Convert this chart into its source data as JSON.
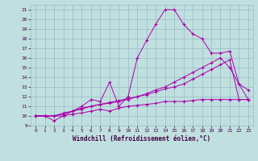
{
  "xlabel": "Windchill (Refroidissement éolien,°C)",
  "background_color": "#c0e0e0",
  "grid_color": "#9ab8c8",
  "line_color": "#aa00aa",
  "xlim": [
    -0.5,
    23.5
  ],
  "ylim": [
    9,
    21.5
  ],
  "xticks": [
    0,
    1,
    2,
    3,
    4,
    5,
    6,
    7,
    8,
    9,
    10,
    11,
    12,
    13,
    14,
    15,
    16,
    17,
    18,
    19,
    20,
    21,
    22,
    23
  ],
  "yticks": [
    9,
    10,
    11,
    12,
    13,
    14,
    15,
    16,
    17,
    18,
    19,
    20,
    21
  ],
  "line1_x": [
    0,
    1,
    2,
    3,
    4,
    5,
    6,
    7,
    8,
    9,
    10,
    11,
    12,
    13,
    14,
    15,
    16,
    17,
    18,
    19,
    20,
    21,
    22,
    23
  ],
  "line1_y": [
    10,
    10,
    9.5,
    10,
    10.5,
    11,
    11.7,
    11.5,
    13.5,
    11.0,
    12.0,
    16.0,
    17.8,
    19.5,
    21.0,
    21.0,
    19.5,
    18.5,
    18.0,
    16.5,
    16.5,
    16.7,
    13.3,
    12.7
  ],
  "line2_x": [
    0,
    1,
    2,
    3,
    4,
    5,
    6,
    7,
    8,
    9,
    10,
    11,
    12,
    13,
    14,
    15,
    16,
    17,
    18,
    19,
    20,
    21,
    22,
    23
  ],
  "line2_y": [
    10,
    10,
    10,
    10.3,
    10.5,
    10.8,
    11.0,
    11.2,
    11.3,
    11.5,
    11.7,
    12.0,
    12.3,
    12.7,
    13.0,
    13.5,
    14.0,
    14.5,
    15.0,
    15.5,
    16.0,
    15.0,
    13.3,
    11.7
  ],
  "line3_x": [
    0,
    1,
    2,
    3,
    4,
    5,
    6,
    7,
    8,
    9,
    10,
    11,
    12,
    13,
    14,
    15,
    16,
    17,
    18,
    19,
    20,
    21,
    22,
    23
  ],
  "line3_y": [
    10,
    10,
    10,
    10.2,
    10.5,
    10.7,
    11.0,
    11.2,
    11.4,
    11.6,
    11.8,
    12.0,
    12.2,
    12.5,
    12.8,
    13.0,
    13.3,
    13.8,
    14.3,
    14.8,
    15.3,
    15.8,
    11.7,
    11.7
  ],
  "line4_x": [
    0,
    1,
    2,
    3,
    4,
    5,
    6,
    7,
    8,
    9,
    10,
    11,
    12,
    13,
    14,
    15,
    16,
    17,
    18,
    19,
    20,
    21,
    22,
    23
  ],
  "line4_y": [
    10,
    10,
    10,
    10,
    10.2,
    10.3,
    10.5,
    10.7,
    10.5,
    10.8,
    11.0,
    11.1,
    11.2,
    11.3,
    11.5,
    11.5,
    11.5,
    11.6,
    11.7,
    11.7,
    11.7,
    11.7,
    11.7,
    11.7
  ]
}
